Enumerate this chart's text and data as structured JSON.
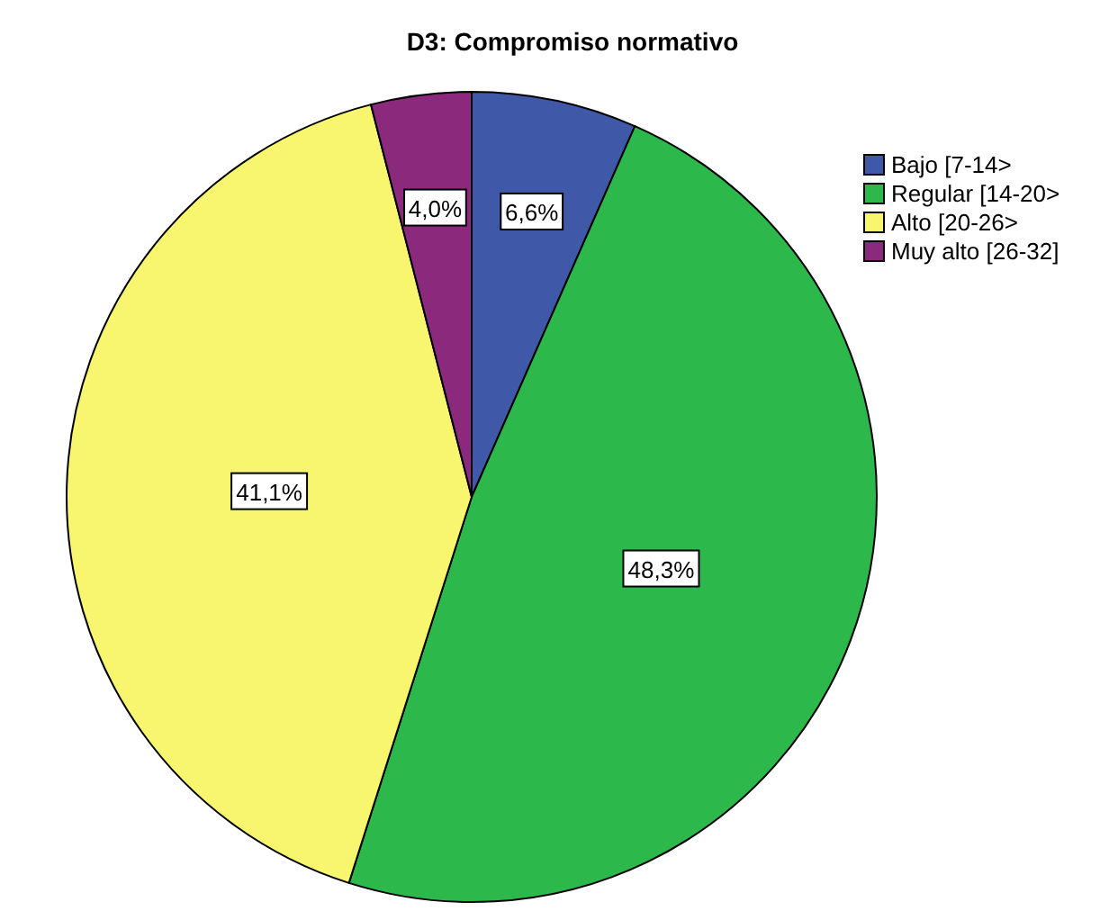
{
  "chart_data": {
    "type": "pie",
    "title": "D3: Compromiso normativo",
    "categories": [
      "Bajo [7-14>",
      "Regular [14-20>",
      "Alto [20-26>",
      "Muy alto [26-32]"
    ],
    "values": [
      6.6,
      48.3,
      41.1,
      4.0
    ],
    "value_labels": [
      "6,6%",
      "48,3%",
      "41,1%",
      "4,0%"
    ],
    "colors": [
      "#3f58a8",
      "#2db84b",
      "#f8f56e",
      "#8b2a7c"
    ],
    "legend": "top right"
  }
}
